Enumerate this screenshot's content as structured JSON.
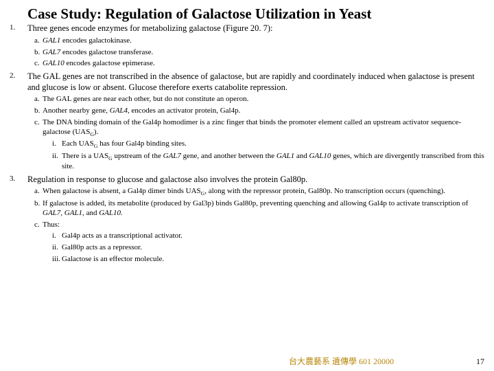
{
  "title": "Case Study: Regulation of Galactose Utilization in Yeast",
  "items": [
    {
      "intro_pre": "Three genes encode enzymes for metabolizing galactose (Figure 20. 7):",
      "alpha": [
        {
          "l": "a.",
          "html": "<span class='ital'>GAL1</span> encodes galactokinase."
        },
        {
          "l": "b.",
          "html": "<span class='ital'>GAL7</span> encodes galactose transferase."
        },
        {
          "l": "c.",
          "html": "<span class='ital'>GAL10</span> encodes galactose epimerase."
        }
      ]
    },
    {
      "intro_pre": "The GAL genes are not transcribed in the absence of galactose, but are rapidly and coordinately induced when galactose is present and glucose is low or absent. Glucose therefore exerts catabolite repression.",
      "alpha": [
        {
          "l": "a.",
          "html": "The GAL genes are near each other, but do not constitute an operon."
        },
        {
          "l": "b.",
          "html": "Another nearby gene, <span class='ital'>GAL4,</span> encodes an activator protein, Gal4p."
        },
        {
          "l": "c.",
          "html": "The DNA binding domain of the Gal4p homodimer is a zinc finger that binds the promoter element called an upstream activator sequence-galactose (UAS<sub>G</sub>).",
          "roman": [
            {
              "l": "i.",
              "html": "Each UAS<sub>G</sub> has four Gal4p binding sites."
            },
            {
              "l": "ii.",
              "html": "There is a UAS<sub>G</sub> upstream of the <span class='ital'>GAL7</span> gene, and another between the <span class='ital'>GAL1</span> and <span class='ital'>GAL10</span> genes, which are divergently transcribed from this site."
            }
          ]
        }
      ]
    },
    {
      "intro_pre": "Regulation in response to glucose and galactose also involves the protein Gal80p.",
      "alpha": [
        {
          "l": "a.",
          "html": "When galactose is absent, a Gal4p dimer binds UAS<sub>G</sub>, along with the repressor protein, Gal80p. No transcription occurs (quenching)."
        },
        {
          "l": "b.",
          "html": "If galactose is added, its metabolite (produced by Gal3p) binds Gal80p, preventing quenching and allowing Gal4p to activate transcription of <span class='ital'>GAL7, GAL1,</span> and <span class='ital'>GAL10.</span>"
        },
        {
          "l": "c.",
          "html": "Thus:",
          "roman": [
            {
              "l": "i.",
              "html": "Gal4p acts as a transcriptional activator."
            },
            {
              "l": "ii.",
              "html": "Gal80p acts as a repressor."
            },
            {
              "l": "iii.",
              "html": "Galactose is an effector molecule."
            }
          ]
        }
      ]
    }
  ],
  "footer": {
    "course": "台大農藝系 遺傳學 601 20000",
    "page": "17"
  },
  "colors": {
    "bg": "#ffffff",
    "text": "#000000",
    "course": "#b8860b"
  }
}
